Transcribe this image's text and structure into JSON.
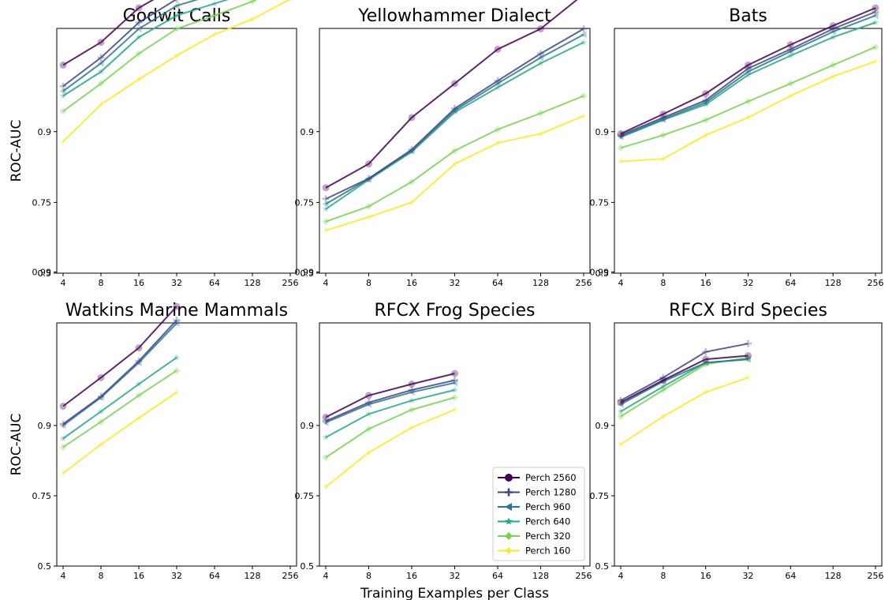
{
  "figure": {
    "ylabel": "ROC-AUC",
    "xlabel": "Training Examples per Class"
  },
  "chart_data": [
    {
      "type": "line",
      "title": "Godwit Calls",
      "ylabel": "ROC-AUC",
      "xlabel": "",
      "x": [
        4,
        8,
        16,
        32,
        64,
        128,
        256
      ],
      "xscale": "log2",
      "yticks": [
        "0.5",
        "0.75",
        "0.9",
        "0.99"
      ],
      "grid": false,
      "series": [
        {
          "name": "Perch 2560",
          "values": [
            0.962,
            0.973,
            0.984,
            0.9885,
            0.99,
            0.9915,
            0.9945
          ]
        },
        {
          "name": "Perch 1280",
          "values": [
            0.948,
            0.966,
            0.98,
            0.986,
            0.9885,
            0.99,
            0.993
          ]
        },
        {
          "name": "Perch 960",
          "values": [
            0.944,
            0.963,
            0.978,
            0.9845,
            0.987,
            0.989,
            0.992
          ]
        },
        {
          "name": "Perch 640",
          "values": [
            0.94,
            0.958,
            0.975,
            0.982,
            0.985,
            0.9875,
            0.991
          ]
        },
        {
          "name": "Perch 320",
          "values": [
            0.925,
            0.95,
            0.968,
            0.978,
            0.982,
            0.9855,
            0.989
          ]
        },
        {
          "name": "Perch 160",
          "values": [
            0.885,
            0.932,
            0.953,
            0.967,
            0.976,
            0.981,
            0.986
          ]
        }
      ]
    },
    {
      "type": "line",
      "title": "Yellowhammer Dialect",
      "ylabel": "",
      "xlabel": "",
      "x": [
        4,
        8,
        16,
        32,
        64,
        128,
        256
      ],
      "xscale": "log2",
      "yticks": [
        "0.5",
        "0.75",
        "0.9",
        "0.99"
      ],
      "grid": false,
      "series": [
        {
          "name": "Perch 2560",
          "values": [
            0.79,
            0.845,
            0.918,
            0.95,
            0.97,
            0.978,
            0.987
          ]
        },
        {
          "name": "Perch 1280",
          "values": [
            0.76,
            0.813,
            0.872,
            0.928,
            0.952,
            0.968,
            0.978
          ]
        },
        {
          "name": "Perch 960",
          "values": [
            0.745,
            0.812,
            0.87,
            0.926,
            0.95,
            0.966,
            0.976
          ]
        },
        {
          "name": "Perch 640",
          "values": [
            0.73,
            0.81,
            0.868,
            0.924,
            0.947,
            0.963,
            0.973
          ]
        },
        {
          "name": "Perch 320",
          "values": [
            0.69,
            0.738,
            0.805,
            0.87,
            0.903,
            0.923,
            0.94
          ]
        },
        {
          "name": "Perch 160",
          "values": [
            0.66,
            0.705,
            0.75,
            0.845,
            0.883,
            0.897,
            0.92
          ]
        }
      ]
    },
    {
      "type": "line",
      "title": "Bats",
      "ylabel": "",
      "xlabel": "",
      "x": [
        4,
        8,
        16,
        32,
        64,
        128,
        256
      ],
      "xscale": "log2",
      "yticks": [
        "0.5",
        "0.75",
        "0.9",
        "0.99"
      ],
      "grid": false,
      "series": [
        {
          "name": "Perch 2560",
          "values": [
            0.897,
            0.922,
            0.942,
            0.962,
            0.972,
            0.979,
            0.984
          ]
        },
        {
          "name": "Perch 1280",
          "values": [
            0.895,
            0.918,
            0.936,
            0.96,
            0.97,
            0.978,
            0.983
          ]
        },
        {
          "name": "Perch 960",
          "values": [
            0.893,
            0.916,
            0.934,
            0.958,
            0.969,
            0.977,
            0.982
          ]
        },
        {
          "name": "Perch 640",
          "values": [
            0.892,
            0.915,
            0.932,
            0.956,
            0.967,
            0.975,
            0.98
          ]
        },
        {
          "name": "Perch 320",
          "values": [
            0.875,
            0.895,
            0.915,
            0.935,
            0.95,
            0.962,
            0.971
          ]
        },
        {
          "name": "Perch 160",
          "values": [
            0.85,
            0.855,
            0.895,
            0.918,
            0.94,
            0.955,
            0.964
          ]
        }
      ]
    },
    {
      "type": "line",
      "title": "Watkins Marine Mammals",
      "ylabel": "ROC-AUC",
      "xlabel": "",
      "x": [
        4,
        8,
        16,
        32
      ],
      "xscale": "log2",
      "yticks": [
        "0.5",
        "0.75",
        "0.9",
        "0.99"
      ],
      "grid": false,
      "series": [
        {
          "name": "Perch 2560",
          "values": [
            0.924,
            0.95,
            0.968,
            0.983
          ]
        },
        {
          "name": "Perch 1280",
          "values": [
            0.902,
            0.934,
            0.961,
            0.979
          ]
        },
        {
          "name": "Perch 960",
          "values": [
            0.9,
            0.933,
            0.96,
            0.978
          ]
        },
        {
          "name": "Perch 640",
          "values": [
            0.88,
            0.918,
            0.945,
            0.963
          ]
        },
        {
          "name": "Perch 320",
          "values": [
            0.865,
            0.905,
            0.935,
            0.955
          ]
        },
        {
          "name": "Perch 160",
          "values": [
            0.81,
            0.87,
            0.91,
            0.938
          ]
        }
      ]
    },
    {
      "type": "line",
      "title": "RFCX Frog Species",
      "ylabel": "",
      "xlabel": "Training Examples per Class",
      "x": [
        4,
        8,
        16,
        32
      ],
      "xscale": "log2",
      "yticks": [
        "0.5",
        "0.75",
        "0.9",
        "0.99"
      ],
      "grid": false,
      "series": [
        {
          "name": "Perch 2560",
          "values": [
            0.911,
            0.935,
            0.945,
            0.953
          ]
        },
        {
          "name": "Perch 1280",
          "values": [
            0.906,
            0.928,
            0.94,
            0.948
          ]
        },
        {
          "name": "Perch 960",
          "values": [
            0.904,
            0.926,
            0.938,
            0.946
          ]
        },
        {
          "name": "Perch 640",
          "values": [
            0.882,
            0.915,
            0.93,
            0.94
          ]
        },
        {
          "name": "Perch 320",
          "values": [
            0.845,
            0.895,
            0.92,
            0.933
          ]
        },
        {
          "name": "Perch 160",
          "values": [
            0.775,
            0.855,
            0.897,
            0.92
          ]
        }
      ]
    },
    {
      "type": "line",
      "title": "RFCX Bird Species",
      "ylabel": "",
      "xlabel": "",
      "x": [
        4,
        8,
        16,
        32
      ],
      "xscale": "log2",
      "yticks": [
        "0.5",
        "0.75",
        "0.9",
        "0.99"
      ],
      "grid": false,
      "series": [
        {
          "name": "Perch 2560",
          "values": [
            0.928,
            0.948,
            0.962,
            0.964
          ]
        },
        {
          "name": "Perch 1280",
          "values": [
            0.93,
            0.95,
            0.966,
            0.97
          ]
        },
        {
          "name": "Perch 960",
          "values": [
            0.926,
            0.947,
            0.96,
            0.962
          ]
        },
        {
          "name": "Perch 640",
          "values": [
            0.918,
            0.943,
            0.96,
            0.962
          ]
        },
        {
          "name": "Perch 320",
          "values": [
            0.912,
            0.94,
            0.959,
            0.963
          ]
        },
        {
          "name": "Perch 160",
          "values": [
            0.87,
            0.912,
            0.938,
            0.95
          ]
        }
      ]
    }
  ],
  "legend": {
    "position": "lower-right of RFCX Frog Species panel",
    "entries": [
      "Perch 2560",
      "Perch 1280",
      "Perch 960",
      "Perch 640",
      "Perch 320",
      "Perch 160"
    ]
  },
  "style": {
    "colors": [
      "#440154",
      "#414487",
      "#2a788e",
      "#22a884",
      "#7ad151",
      "#fde725"
    ],
    "markers": [
      "circle",
      "plus",
      "left-triangle",
      "star",
      "diamond",
      "thin-diamond"
    ]
  }
}
